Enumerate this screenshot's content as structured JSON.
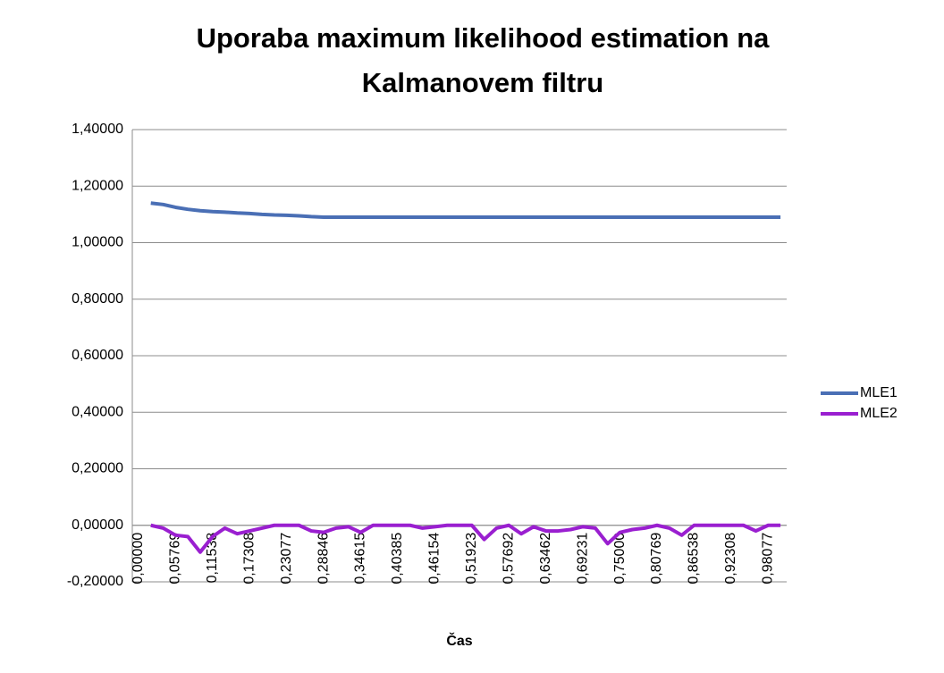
{
  "chart_data": {
    "type": "line",
    "title": "Uporaba maximum likelihood estimation na Kalmanovem filtru",
    "x_label": "Čas",
    "categories": [
      "0,00000",
      null,
      null,
      "0,05769",
      null,
      null,
      "0,11538",
      null,
      null,
      "0,17308",
      null,
      null,
      "0,23077",
      null,
      null,
      "0,28846",
      null,
      null,
      "0,34615",
      null,
      null,
      "0,40385",
      null,
      null,
      "0,46154",
      null,
      null,
      "0,51923",
      null,
      null,
      "0,57692",
      null,
      null,
      "0,63462",
      null,
      null,
      "0,69231",
      null,
      null,
      "0,75000",
      null,
      null,
      "0,80769",
      null,
      null,
      "0,86538",
      null,
      null,
      "0,92308",
      null,
      null,
      "0,98077",
      null
    ],
    "series": [
      {
        "name": "MLE1",
        "color": "#4a6fb5",
        "values": [
          null,
          1.14,
          1.135,
          1.125,
          1.118,
          1.113,
          1.11,
          1.108,
          1.105,
          1.103,
          1.1,
          1.098,
          1.097,
          1.095,
          1.092,
          1.09,
          1.09,
          1.09,
          1.09,
          1.09,
          1.09,
          1.09,
          1.09,
          1.09,
          1.09,
          1.09,
          1.09,
          1.09,
          1.09,
          1.09,
          1.09,
          1.09,
          1.09,
          1.09,
          1.09,
          1.09,
          1.09,
          1.09,
          1.09,
          1.09,
          1.09,
          1.09,
          1.09,
          1.09,
          1.09,
          1.09,
          1.09,
          1.09,
          1.09,
          1.09,
          1.09,
          1.09,
          1.09
        ]
      },
      {
        "name": "MLE2",
        "color": "#9a1fd0",
        "values": [
          null,
          0,
          -0.01,
          -0.035,
          -0.04,
          -0.095,
          -0.04,
          -0.01,
          -0.03,
          -0.02,
          -0.01,
          0,
          0,
          0,
          -0.02,
          -0.025,
          -0.01,
          -0.005,
          -0.025,
          0,
          0,
          0,
          0,
          -0.01,
          -0.005,
          0,
          0,
          0,
          -0.05,
          -0.01,
          0,
          -0.03,
          -0.005,
          -0.02,
          -0.02,
          -0.015,
          -0.005,
          -0.01,
          -0.065,
          -0.025,
          -0.015,
          -0.01,
          0,
          -0.01,
          -0.035,
          0,
          0,
          0,
          0,
          0,
          -0.02,
          0,
          0
        ]
      }
    ],
    "ylim": [
      -0.2,
      1.4
    ],
    "yticks": [
      {
        "value": -0.2,
        "label": "-0,20000"
      },
      {
        "value": 0,
        "label": "0,00000"
      },
      {
        "value": 0.2,
        "label": "0,20000"
      },
      {
        "value": 0.4,
        "label": "0,40000"
      },
      {
        "value": 0.6,
        "label": "0,60000"
      },
      {
        "value": 0.8,
        "label": "0,80000"
      },
      {
        "value": 1,
        "label": "1,00000"
      },
      {
        "value": 1.2,
        "label": "1,20000"
      },
      {
        "value": 1.4,
        "label": "1,40000"
      }
    ],
    "grid": true,
    "legend": "right"
  }
}
